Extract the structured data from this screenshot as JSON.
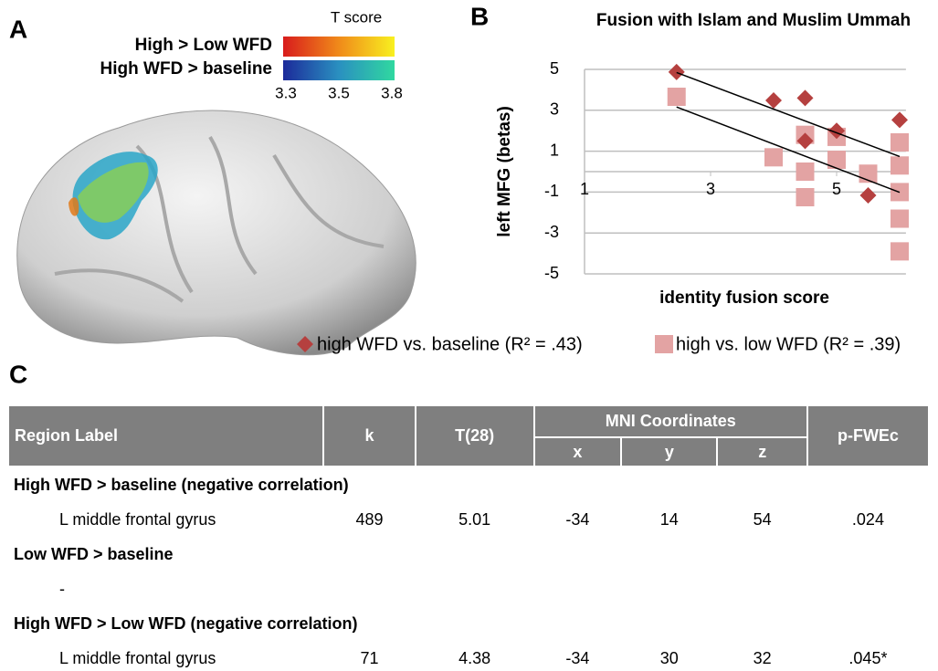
{
  "panel_labels": [
    "A",
    "B",
    "C"
  ],
  "panel_a": {
    "colorbar_title": "T score",
    "legend": [
      "High > Low WFD",
      "High WFD > baseline"
    ],
    "colorbar_ticks": [
      "3.3",
      "3.5",
      "3.8"
    ]
  },
  "chart_data": {
    "type": "scatter",
    "title": "Fusion with Islam and Muslim Ummah",
    "x_label": "identity fusion score",
    "y_label": "left MFG (betas)",
    "xlim": [
      1,
      6.1
    ],
    "xticks": [
      1,
      3,
      5
    ],
    "ylim": [
      -5,
      5
    ],
    "yticks": [
      5,
      3,
      1,
      -1,
      -3,
      -5
    ],
    "grid": true,
    "trendline": true,
    "series": [
      {
        "name": "high WFD vs. baseline (R² = .43)",
        "color": "#b5403f",
        "marker": "diamond",
        "x": [
          2.46,
          4.0,
          4.5,
          4.5,
          5.0,
          5.5,
          6.0
        ],
        "values": [
          4.87,
          3.48,
          3.6,
          1.5,
          2.0,
          -1.16,
          2.53
        ]
      },
      {
        "name": "high vs. low WFD (R² = .39)",
        "color": "#e3a3a3",
        "marker": "square",
        "x": [
          2.46,
          4.0,
          4.5,
          4.5,
          4.5,
          5.0,
          5.0,
          5.5,
          6.0,
          6.0,
          6.0,
          6.0,
          6.0
        ],
        "values": [
          3.66,
          0.7,
          1.8,
          0.0,
          -1.25,
          1.7,
          0.58,
          -0.1,
          1.43,
          0.3,
          -1.0,
          -2.3,
          -3.9
        ]
      }
    ]
  },
  "table": {
    "header": {
      "region": "Region Label",
      "k": "k",
      "t": "T(28)",
      "mni": "MNI Coordinates",
      "x": "x",
      "y": "y",
      "z": "z",
      "p": "p-FWEc"
    },
    "rows": [
      [
        "High WFD > baseline (negative correlation)"
      ],
      [
        "L middle frontal gyrus",
        "489",
        "5.01",
        "-34",
        "14",
        "54",
        ".024"
      ],
      [
        "Low WFD > baseline"
      ],
      [
        "-"
      ],
      [
        "High WFD > Low WFD (negative correlation)"
      ],
      [
        "L middle frontal gyrus",
        "71",
        "4.38",
        "-34",
        "30",
        "32",
        ".045*"
      ]
    ]
  }
}
